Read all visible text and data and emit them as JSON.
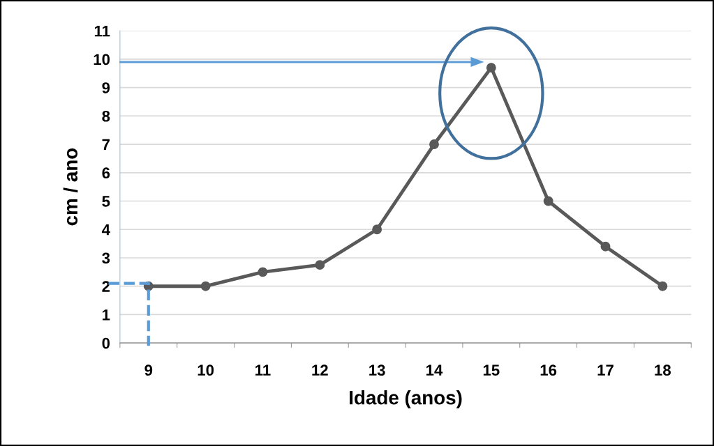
{
  "chart_data": {
    "type": "line",
    "xlabel": "Idade (anos)",
    "ylabel": "cm / ano",
    "categories": [
      "9",
      "10",
      "11",
      "12",
      "13",
      "14",
      "15",
      "16",
      "17",
      "18"
    ],
    "series": [
      {
        "color": "#595959",
        "values": [
          2,
          2,
          2.5,
          2.75,
          4,
          7,
          9.7,
          5,
          3.4,
          2
        ]
      }
    ],
    "ylim": [
      0,
      11
    ],
    "yticks": [
      0,
      1,
      2,
      3,
      4,
      5,
      6,
      7,
      8,
      9,
      10,
      11
    ],
    "grid": "y",
    "marker": "circle",
    "line_style": "solid"
  }
}
